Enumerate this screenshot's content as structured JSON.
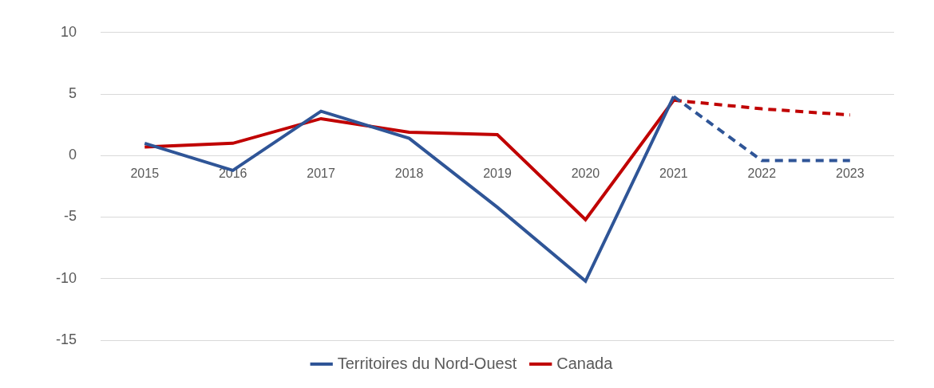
{
  "chart_data": {
    "type": "line",
    "categories": [
      "2015",
      "2016",
      "2017",
      "2018",
      "2019",
      "2020",
      "2021",
      "2022",
      "2023"
    ],
    "series": [
      {
        "name": "Territoires du Nord-Ouest",
        "color": "#2f5597",
        "line_style": "solid",
        "values": [
          1.0,
          -1.2,
          3.6,
          1.4,
          -4.2,
          -10.2,
          4.8,
          null,
          null
        ]
      },
      {
        "name": "Canada",
        "color": "#c00000",
        "line_style": "solid",
        "values": [
          0.7,
          1.0,
          3.0,
          1.9,
          1.7,
          -5.2,
          4.5,
          null,
          null
        ]
      },
      {
        "name": "Territoires du Nord-Ouest",
        "color": "#2f5597",
        "line_style": "dashed",
        "values": [
          null,
          null,
          null,
          null,
          null,
          null,
          4.8,
          -0.4,
          -0.4
        ]
      },
      {
        "name": "Canada",
        "color": "#c00000",
        "line_style": "dashed",
        "values": [
          null,
          null,
          null,
          null,
          null,
          null,
          4.5,
          3.8,
          3.3
        ]
      }
    ],
    "ylim": [
      -15,
      10
    ],
    "yticks": [
      -15,
      -10,
      -5,
      0,
      5,
      10
    ],
    "grid": true,
    "legend": "bottom"
  }
}
